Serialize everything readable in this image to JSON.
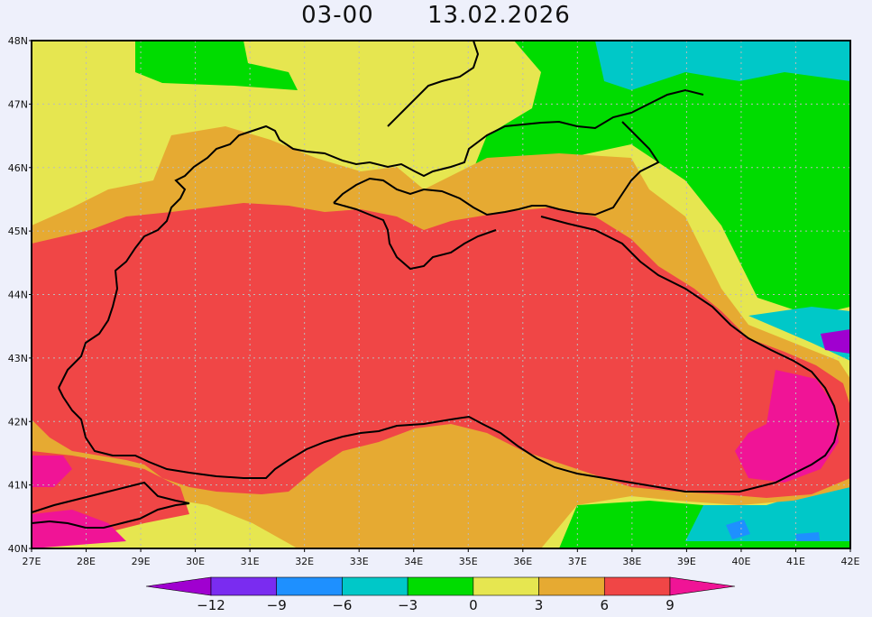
{
  "title": {
    "time": "03-00",
    "date": "13.02.2026"
  },
  "lat_labels": [
    "48N",
    "47N",
    "46N",
    "45N",
    "44N",
    "43N",
    "42N",
    "41N",
    "40N"
  ],
  "lon_labels": [
    "27E",
    "28E",
    "29E",
    "30E",
    "31E",
    "32E",
    "33E",
    "34E",
    "35E",
    "36E",
    "37E",
    "38E",
    "39E",
    "40E",
    "41E",
    "42E"
  ],
  "colorbar": {
    "labels": [
      "−12",
      "−9",
      "−6",
      "−3",
      "0",
      "3",
      "6",
      "9"
    ],
    "colors": [
      "#a000d0",
      "#7a2cf0",
      "#1e90ff",
      "#00c8c8",
      "#00dc00",
      "#e6e650",
      "#e6aa32",
      "#f04646",
      "#f01496"
    ]
  },
  "colors": {
    "magenta": "#f01496",
    "red": "#f04646",
    "orange": "#e6aa32",
    "yellow": "#e6e650",
    "green": "#00dc00",
    "cyan": "#00c8c8",
    "blue": "#1e90ff",
    "purple": "#a000d0",
    "coast": "#000000",
    "grid": "#bbbbbb"
  }
}
